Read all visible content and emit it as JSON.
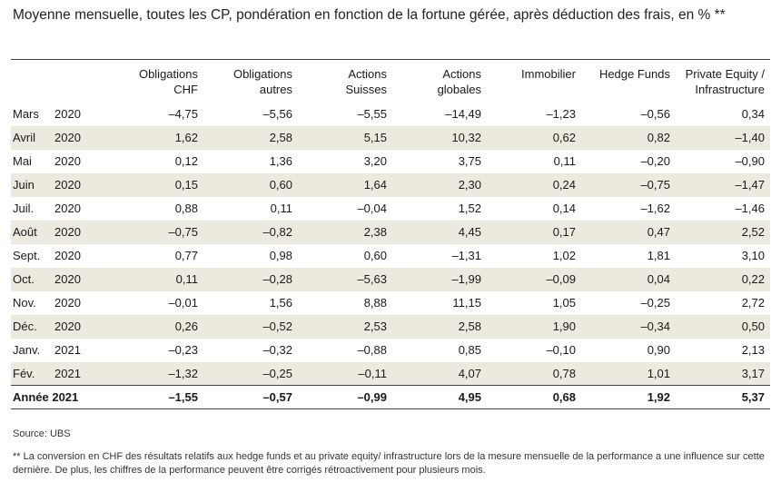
{
  "title": "Moyenne mensuelle, toutes les CP, pondération en fonction de la fortune gérée, après déduction des frais, en % **",
  "columns": [
    [
      "Obligations",
      "CHF"
    ],
    [
      "Obligations",
      "autres"
    ],
    [
      "Actions",
      "Suisses"
    ],
    [
      "Actions",
      "globales"
    ],
    [
      "Immobilier",
      ""
    ],
    [
      "Hedge Funds",
      ""
    ],
    [
      "Private Equity /",
      "Infrastructure"
    ]
  ],
  "rows": [
    {
      "month": "Mars",
      "year": "2020",
      "values": [
        "–4,75",
        "–5,56",
        "–5,55",
        "–14,49",
        "–1,23",
        "–0,56",
        "0,34"
      ]
    },
    {
      "month": "Avril",
      "year": "2020",
      "values": [
        "1,62",
        "2,58",
        "5,15",
        "10,32",
        "0,62",
        "0,82",
        "–1,40"
      ]
    },
    {
      "month": "Mai",
      "year": "2020",
      "values": [
        "0,12",
        "1,36",
        "3,20",
        "3,75",
        "0,11",
        "–0,20",
        "–0,90"
      ]
    },
    {
      "month": "Juin",
      "year": "2020",
      "values": [
        "0,15",
        "0,60",
        "1,64",
        "2,30",
        "0,24",
        "–0,75",
        "–1,47"
      ]
    },
    {
      "month": "Juil.",
      "year": "2020",
      "values": [
        "0,88",
        "0,11",
        "–0,04",
        "1,52",
        "0,14",
        "–1,62",
        "–1,46"
      ]
    },
    {
      "month": "Août",
      "year": "2020",
      "values": [
        "–0,75",
        "–0,82",
        "2,38",
        "4,45",
        "0,17",
        "0,47",
        "2,52"
      ]
    },
    {
      "month": "Sept.",
      "year": "2020",
      "values": [
        "0,77",
        "0,98",
        "0,60",
        "–1,31",
        "1,02",
        "1,81",
        "3,10"
      ]
    },
    {
      "month": "Oct.",
      "year": "2020",
      "values": [
        "0,11",
        "–0,28",
        "–5,63",
        "–1,99",
        "–0,09",
        "0,04",
        "0,22"
      ]
    },
    {
      "month": "Nov.",
      "year": "2020",
      "values": [
        "–0,01",
        "1,56",
        "8,88",
        "11,15",
        "1,05",
        "–0,25",
        "2,72"
      ]
    },
    {
      "month": "Déc.",
      "year": "2020",
      "values": [
        "0,26",
        "–0,52",
        "2,53",
        "2,58",
        "1,90",
        "–0,34",
        "0,50"
      ]
    },
    {
      "month": "Janv.",
      "year": "2021",
      "values": [
        "–0,23",
        "–0,32",
        "–0,88",
        "0,85",
        "–0,10",
        "0,90",
        "2,13"
      ]
    },
    {
      "month": "Fév.",
      "year": "2021",
      "values": [
        "–1,32",
        "–0,25",
        "–0,11",
        "4,07",
        "0,78",
        "1,01",
        "3,17"
      ]
    }
  ],
  "total": {
    "label": "Année 2021",
    "values": [
      "–1,55",
      "–0,57",
      "–0,99",
      "4,95",
      "0,68",
      "1,92",
      "5,37"
    ]
  },
  "source": "Source: UBS",
  "footnote": "** La conversion en CHF des résultats relatifs aux hedge funds et au private equity/ infrastructure lors de la mesure mensuelle de la performance a une influence sur cette dernière. De plus, les chiffres de la performance peuvent être corrigés rétroactivement pour plusieurs mois.",
  "colors": {
    "shaded_row": "#ede9df",
    "rule": "#444444"
  }
}
